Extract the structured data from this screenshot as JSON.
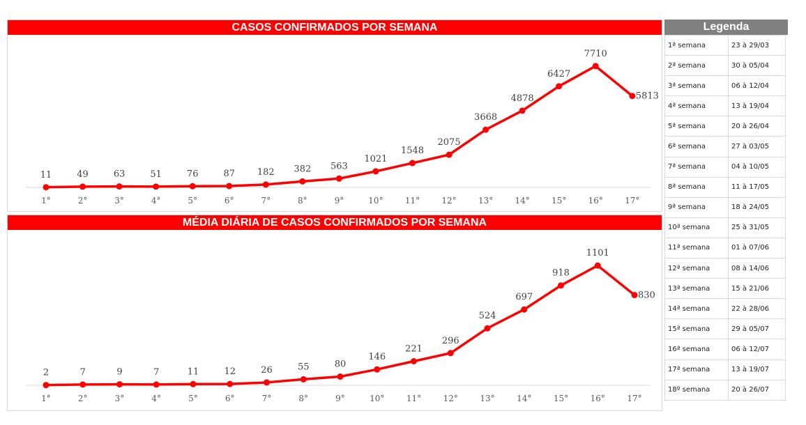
{
  "chart_data": [
    {
      "type": "line",
      "title": "CASOS CONFIRMADOS POR SEMANA",
      "categories": [
        "1°",
        "2°",
        "3°",
        "4°",
        "5°",
        "6°",
        "7°",
        "8°",
        "9°",
        "10°",
        "11°",
        "12°",
        "13°",
        "14°",
        "15°",
        "16°",
        "17°"
      ],
      "values": [
        11,
        49,
        63,
        51,
        76,
        87,
        182,
        382,
        563,
        1021,
        1548,
        2075,
        3668,
        4878,
        6427,
        7710,
        5813
      ],
      "ylim": [
        0,
        8500
      ],
      "grid": false,
      "color": "#ff0000",
      "data_labels": true
    },
    {
      "type": "line",
      "title": "MÉDIA DIÁRIA DE CASOS CONFIRMADOS POR SEMANA",
      "categories": [
        "1°",
        "2°",
        "3°",
        "4°",
        "5°",
        "6°",
        "7°",
        "8°",
        "9°",
        "10°",
        "11°",
        "12°",
        "13°",
        "14°",
        "15°",
        "16°",
        "17°"
      ],
      "values": [
        2,
        7,
        9,
        7,
        11,
        12,
        26,
        55,
        80,
        146,
        221,
        296,
        524,
        697,
        918,
        1101,
        830
      ],
      "ylim": [
        0,
        1230
      ],
      "grid": false,
      "color": "#ff0000",
      "data_labels": true
    }
  ],
  "legend": {
    "title": "Legenda",
    "rows": [
      {
        "week": "1ª semana",
        "dates": "23 à 29/03"
      },
      {
        "week": "2ª semana",
        "dates": "30 à 05/04"
      },
      {
        "week": "3ª semana",
        "dates": "06 à 12/04"
      },
      {
        "week": "4ª semana",
        "dates": "13 à 19/04"
      },
      {
        "week": "5ª semana",
        "dates": "20 à 26/04"
      },
      {
        "week": "6ª semana",
        "dates": "27 à 03/05"
      },
      {
        "week": "7ª semana",
        "dates": "04 à 10/05"
      },
      {
        "week": "8ª semana",
        "dates": "11 à 17/05"
      },
      {
        "week": "9ª semana",
        "dates": "18 à 24/05"
      },
      {
        "week": "10ª semana",
        "dates": "25 à 31/05"
      },
      {
        "week": "11ª semana",
        "dates": "01 à 07/06"
      },
      {
        "week": "12ª semana",
        "dates": "08 à 14/06"
      },
      {
        "week": "13ª semana",
        "dates": "15 à 21/06"
      },
      {
        "week": "14ª semana",
        "dates": "22 à 28/06"
      },
      {
        "week": "15ª semana",
        "dates": "29 à 05/07"
      },
      {
        "week": "16ª semana",
        "dates": "06 à 12/07"
      },
      {
        "week": "17ª semana",
        "dates": "13 à 19/07"
      },
      {
        "week": "18º semana",
        "dates": "20 à 26/07"
      }
    ]
  }
}
